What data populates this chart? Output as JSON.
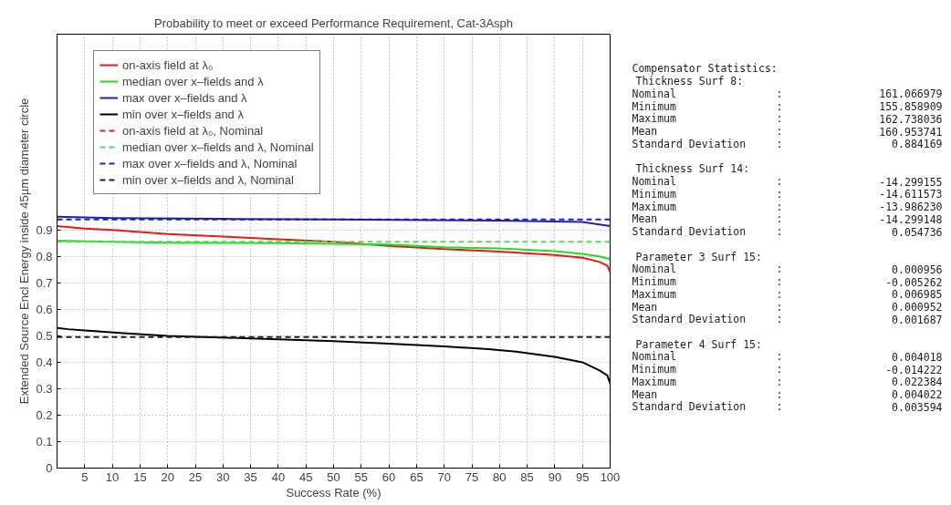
{
  "chart_data": [
    {
      "type": "line",
      "title": "Probability to meet or exceed Performance Requirement, Cat-3Asph",
      "xlabel": "Success Rate (%)",
      "ylabel": "Extended Source Encl Energy inside 45µm diameter circle",
      "xlim": [
        0,
        100
      ],
      "ylim": [
        0,
        1.64
      ],
      "xticks": [
        5,
        10,
        15,
        20,
        25,
        30,
        35,
        40,
        45,
        50,
        55,
        60,
        65,
        70,
        75,
        80,
        85,
        90,
        95,
        100
      ],
      "yticks": [
        0,
        0.1,
        0.2,
        0.3,
        0.4,
        0.5,
        0.6,
        0.7,
        0.8,
        0.9
      ],
      "grid": true,
      "legend": "top left",
      "series": [
        {
          "name": "on-axis field at λ₀",
          "color": "#e41a1c",
          "line_style": "solid",
          "x": [
            0,
            5,
            10,
            20,
            30,
            40,
            50,
            60,
            70,
            80,
            90,
            95,
            98,
            99.5,
            100
          ],
          "values": [
            0.915,
            0.905,
            0.9,
            0.885,
            0.875,
            0.865,
            0.855,
            0.84,
            0.828,
            0.818,
            0.805,
            0.795,
            0.78,
            0.765,
            0.74
          ]
        },
        {
          "name": "median over x–fields and λ",
          "color": "#22dd22",
          "line_style": "solid",
          "x": [
            0,
            10,
            20,
            40,
            60,
            70,
            80,
            90,
            95,
            98,
            100
          ],
          "values": [
            0.86,
            0.855,
            0.852,
            0.85,
            0.845,
            0.835,
            0.83,
            0.82,
            0.81,
            0.8,
            0.79
          ]
        },
        {
          "name": "max over x–fields and λ",
          "color": "#1f1fb4",
          "line_style": "solid",
          "x": [
            0,
            10,
            30,
            50,
            80,
            95,
            100
          ],
          "values": [
            0.95,
            0.945,
            0.942,
            0.94,
            0.935,
            0.93,
            0.915
          ]
        },
        {
          "name": "min over x–fields and λ",
          "color": "#000000",
          "line_style": "solid",
          "x": [
            0,
            2,
            5,
            12,
            20,
            35,
            50,
            60,
            70,
            78,
            83,
            90,
            95,
            98,
            99.5,
            100
          ],
          "values": [
            0.53,
            0.525,
            0.52,
            0.51,
            0.5,
            0.49,
            0.48,
            0.47,
            0.46,
            0.45,
            0.44,
            0.42,
            0.4,
            0.37,
            0.35,
            0.32
          ]
        },
        {
          "name": "on-axis field at λ₀, Nominal",
          "color": "#e41a1c",
          "line_style": "dashed"
        },
        {
          "name": "median over x–fields and λ, Nominal",
          "color": "#55dd55",
          "line_style": "dashed",
          "x": [
            0,
            100
          ],
          "values": [
            0.855,
            0.855
          ]
        },
        {
          "name": "max over x–fields and λ, Nominal",
          "color": "#1f1fb4",
          "line_style": "dashed",
          "x": [
            0,
            100
          ],
          "values": [
            0.94,
            0.94
          ]
        },
        {
          "name": "min over x–fields and λ, Nominal",
          "color": "#222222",
          "line_style": "dashed",
          "x": [
            0,
            100
          ],
          "values": [
            0.495,
            0.495
          ]
        }
      ]
    },
    {
      "type": "other",
      "title": "Compensator Statistics:",
      "annotations": [
        "Thickness Surf 8:",
        "Nominal",
        ":",
        "161.066979",
        "Minimum",
        ":",
        "155.858909",
        "Maximum",
        ":",
        "162.738036",
        "Mean",
        ":",
        "160.953741",
        "Standard Deviation",
        ":",
        "0.884169",
        "Thickness Surf 14:",
        "Nominal",
        ":",
        "-14.299155",
        "Minimum",
        ":",
        "-14.611573",
        "Maximum",
        ":",
        "-13.986230",
        "Mean",
        ":",
        "-14.299148",
        "Standard Deviation",
        ":",
        "0.054736",
        "Parameter 3 Surf 15:",
        "Nominal",
        ":",
        "0.000956",
        "Minimum",
        ":",
        "-0.005262",
        "Maximum",
        ":",
        "0.006985",
        "Mean",
        ":",
        "0.000952",
        "Standard Deviation",
        ":",
        "0.001687",
        "Parameter 4 Surf 15:",
        "Nominal",
        ":",
        "0.004018",
        "Minimum",
        ":",
        "-0.014222",
        "Maximum",
        ":",
        "0.022384",
        "Mean",
        ":",
        "0.004022",
        "Standard Deviation",
        ":",
        "0.003594"
      ]
    }
  ]
}
